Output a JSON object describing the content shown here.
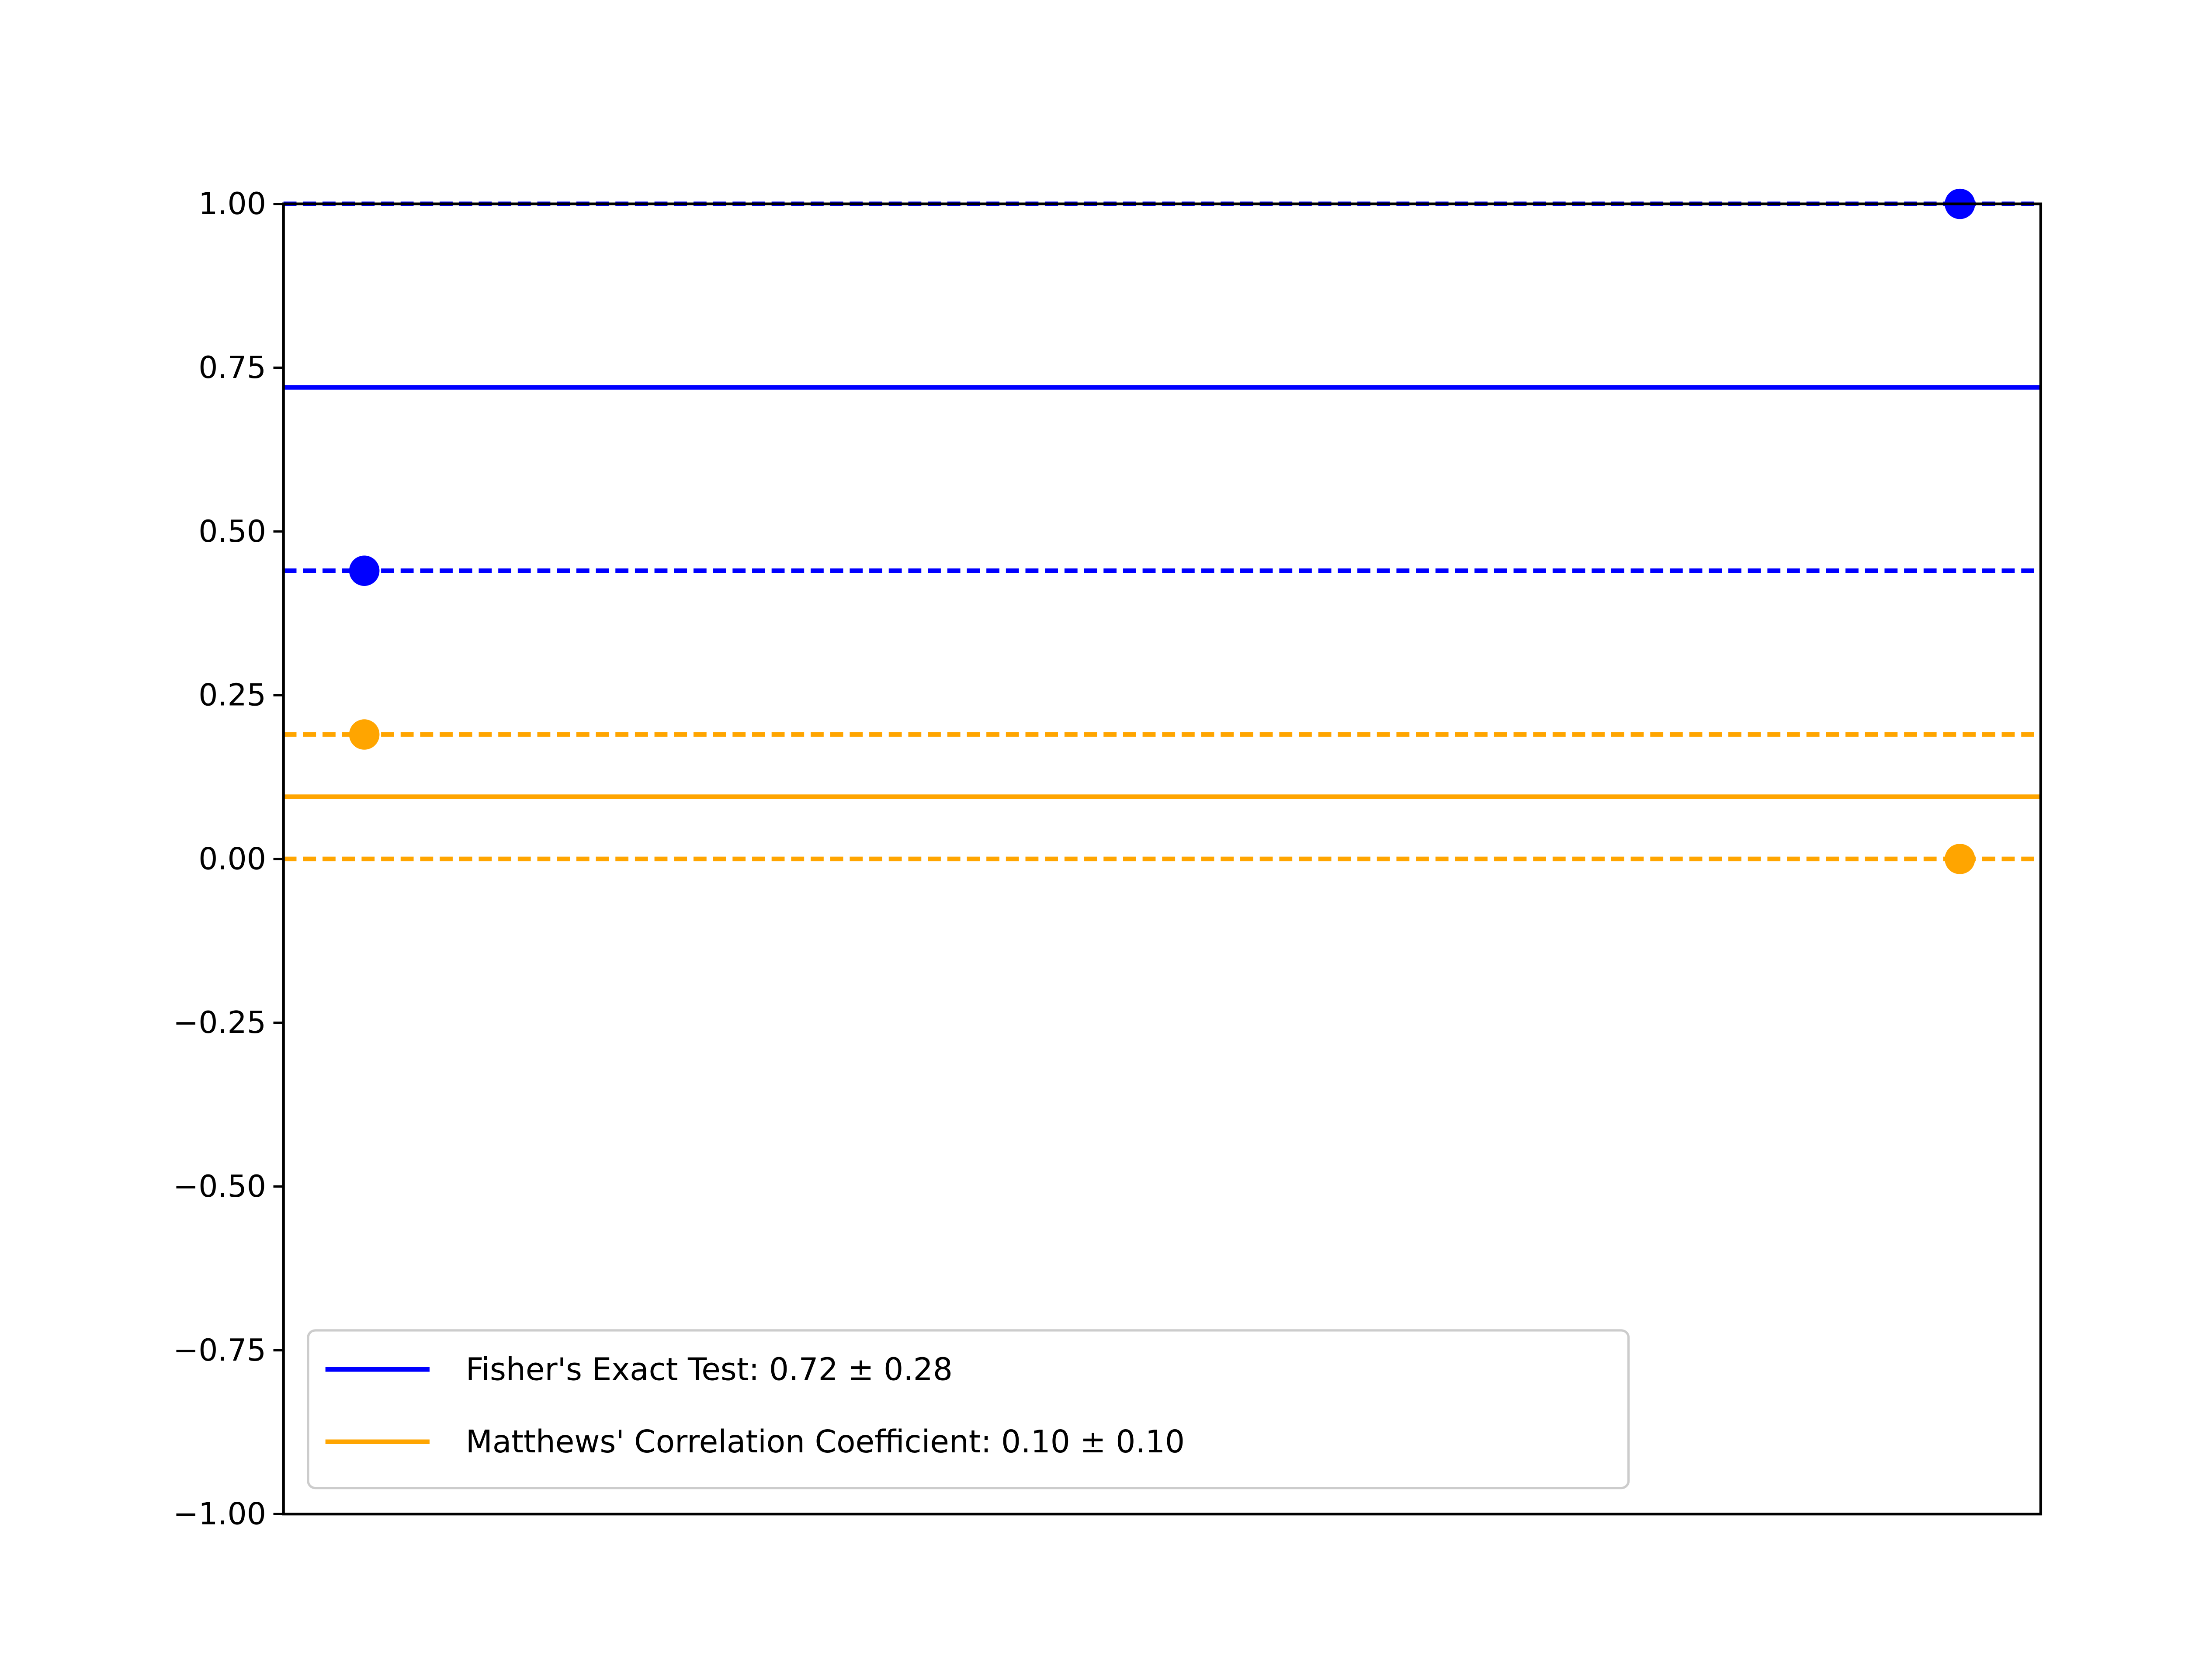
{
  "chart_data": {
    "type": "line",
    "title": "",
    "xlabel": "",
    "ylabel": "",
    "ylim": [
      -1.0,
      1.0
    ],
    "xlim": [
      0,
      1
    ],
    "yticks": [
      "1.00",
      "0.75",
      "0.50",
      "0.25",
      "0.00",
      "−0.25",
      "−0.50",
      "−0.75",
      "−1.00"
    ],
    "ytick_values": [
      1.0,
      0.75,
      0.5,
      0.25,
      0.0,
      -0.25,
      -0.5,
      -0.75,
      -1.0
    ],
    "xticks": [],
    "grid": false,
    "legend_position": "lower-left",
    "series": [
      {
        "name": "Fisher's Exact Test: 0.72 ± 0.28",
        "color": "#0000ff",
        "mean": 0.72,
        "bounds": [
          0.44,
          1.0
        ],
        "points": [
          {
            "x": 0.046,
            "y": 0.44
          },
          {
            "x": 0.954,
            "y": 1.0
          }
        ]
      },
      {
        "name": "Matthews' Correlation Coefficient: 0.10 ± 0.10",
        "color": "#ffa500",
        "mean": 0.095,
        "bounds": [
          0.19,
          0.0
        ],
        "points": [
          {
            "x": 0.046,
            "y": 0.19
          },
          {
            "x": 0.954,
            "y": 0.0
          }
        ]
      }
    ]
  }
}
